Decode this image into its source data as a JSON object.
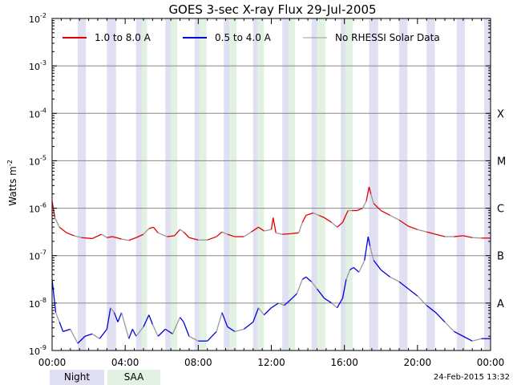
{
  "chart_data": {
    "type": "line",
    "title": "GOES 3-sec X-ray Flux",
    "date": "29-Jul-2005",
    "ylabel": "Watts m",
    "ylabel_sup": "-2",
    "yscale": "log",
    "ylim_exp": [
      -9,
      -2
    ],
    "y_ticks": [
      {
        "base": "10",
        "exp": "-9"
      },
      {
        "base": "10",
        "exp": "-8"
      },
      {
        "base": "10",
        "exp": "-7"
      },
      {
        "base": "10",
        "exp": "-6"
      },
      {
        "base": "10",
        "exp": "-5"
      },
      {
        "base": "10",
        "exp": "-4"
      },
      {
        "base": "10",
        "exp": "-3"
      },
      {
        "base": "10",
        "exp": "-2"
      }
    ],
    "flare_classes": [
      {
        "label": "A",
        "exp": -8
      },
      {
        "label": "B",
        "exp": -7
      },
      {
        "label": "C",
        "exp": -6
      },
      {
        "label": "M",
        "exp": -5
      },
      {
        "label": "X",
        "exp": -4
      }
    ],
    "x_ticks": [
      "00:00",
      "04:00",
      "08:00",
      "12:00",
      "16:00",
      "20:00",
      "00:00"
    ],
    "xlim_hours": [
      0,
      24
    ],
    "night_bands_hours": [
      [
        1.4,
        1.85
      ],
      [
        3.0,
        3.5
      ],
      [
        4.6,
        5.05
      ],
      [
        6.2,
        6.65
      ],
      [
        7.8,
        8.25
      ],
      [
        9.4,
        9.85
      ],
      [
        11.0,
        11.45
      ],
      [
        12.6,
        13.05
      ],
      [
        14.2,
        14.65
      ],
      [
        15.8,
        16.3
      ],
      [
        17.35,
        17.85
      ],
      [
        19.0,
        19.45
      ],
      [
        20.5,
        20.95
      ],
      [
        22.15,
        22.6
      ],
      [
        23.65,
        24.0
      ]
    ],
    "saa_bands_hours": [
      [
        4.9,
        5.2
      ],
      [
        6.5,
        6.85
      ],
      [
        8.05,
        8.45
      ],
      [
        9.7,
        10.1
      ],
      [
        11.25,
        11.6
      ],
      [
        12.95,
        13.3
      ],
      [
        14.5,
        14.95
      ],
      [
        16.05,
        16.45
      ]
    ],
    "legend": [
      {
        "label": "1.0 to 8.0 A",
        "color": "#e00000"
      },
      {
        "label": "0.5 to 4.0 A",
        "color": "#0000e0"
      },
      {
        "label": "No RHESSI Solar Data",
        "color": "#999999"
      }
    ],
    "series": [
      {
        "name": "1.0 to 8.0 A",
        "color": "#e00000",
        "points": [
          [
            0.0,
            -5.85
          ],
          [
            0.15,
            -6.2
          ],
          [
            0.4,
            -6.4
          ],
          [
            0.8,
            -6.52
          ],
          [
            1.2,
            -6.58
          ],
          [
            1.6,
            -6.62
          ],
          [
            2.2,
            -6.64
          ],
          [
            2.7,
            -6.55
          ],
          [
            3.0,
            -6.62
          ],
          [
            3.3,
            -6.6
          ],
          [
            3.8,
            -6.65
          ],
          [
            4.2,
            -6.68
          ],
          [
            4.6,
            -6.62
          ],
          [
            5.0,
            -6.55
          ],
          [
            5.3,
            -6.43
          ],
          [
            5.55,
            -6.4
          ],
          [
            5.8,
            -6.52
          ],
          [
            6.3,
            -6.6
          ],
          [
            6.7,
            -6.58
          ],
          [
            7.0,
            -6.45
          ],
          [
            7.2,
            -6.5
          ],
          [
            7.5,
            -6.62
          ],
          [
            8.0,
            -6.67
          ],
          [
            8.5,
            -6.67
          ],
          [
            9.0,
            -6.6
          ],
          [
            9.3,
            -6.5
          ],
          [
            9.6,
            -6.55
          ],
          [
            10.0,
            -6.6
          ],
          [
            10.5,
            -6.6
          ],
          [
            10.9,
            -6.5
          ],
          [
            11.3,
            -6.4
          ],
          [
            11.6,
            -6.48
          ],
          [
            12.0,
            -6.45
          ],
          [
            12.1,
            -6.2
          ],
          [
            12.25,
            -6.52
          ],
          [
            12.6,
            -6.55
          ],
          [
            13.0,
            -6.54
          ],
          [
            13.5,
            -6.52
          ],
          [
            13.7,
            -6.3
          ],
          [
            13.9,
            -6.15
          ],
          [
            14.3,
            -6.1
          ],
          [
            14.6,
            -6.15
          ],
          [
            14.9,
            -6.2
          ],
          [
            15.3,
            -6.3
          ],
          [
            15.6,
            -6.4
          ],
          [
            15.9,
            -6.3
          ],
          [
            16.2,
            -6.05
          ],
          [
            16.4,
            -6.05
          ],
          [
            16.7,
            -6.05
          ],
          [
            17.0,
            -6.0
          ],
          [
            17.2,
            -5.85
          ],
          [
            17.35,
            -5.55
          ],
          [
            17.45,
            -5.7
          ],
          [
            17.6,
            -5.9
          ],
          [
            18.0,
            -6.05
          ],
          [
            18.5,
            -6.15
          ],
          [
            19.0,
            -6.25
          ],
          [
            19.5,
            -6.38
          ],
          [
            20.0,
            -6.45
          ],
          [
            20.5,
            -6.5
          ],
          [
            21.0,
            -6.55
          ],
          [
            21.5,
            -6.6
          ],
          [
            22.0,
            -6.6
          ],
          [
            22.5,
            -6.58
          ],
          [
            23.0,
            -6.62
          ],
          [
            23.5,
            -6.63
          ],
          [
            24.0,
            -6.63
          ]
        ]
      },
      {
        "name": "0.5 to 4.0 A",
        "color": "#0000e0",
        "points": [
          [
            0.0,
            -7.5
          ],
          [
            0.2,
            -8.2
          ],
          [
            0.4,
            -8.4
          ],
          [
            0.6,
            -8.6
          ],
          [
            1.0,
            -8.55
          ],
          [
            1.4,
            -8.85
          ],
          [
            1.8,
            -8.7
          ],
          [
            2.2,
            -8.65
          ],
          [
            2.6,
            -8.75
          ],
          [
            3.0,
            -8.55
          ],
          [
            3.2,
            -8.1
          ],
          [
            3.4,
            -8.2
          ],
          [
            3.6,
            -8.4
          ],
          [
            3.8,
            -8.2
          ],
          [
            4.2,
            -8.75
          ],
          [
            4.4,
            -8.55
          ],
          [
            4.6,
            -8.7
          ],
          [
            5.0,
            -8.5
          ],
          [
            5.3,
            -8.25
          ],
          [
            5.5,
            -8.45
          ],
          [
            5.8,
            -8.7
          ],
          [
            6.2,
            -8.55
          ],
          [
            6.6,
            -8.65
          ],
          [
            7.0,
            -8.3
          ],
          [
            7.2,
            -8.4
          ],
          [
            7.5,
            -8.7
          ],
          [
            8.0,
            -8.8
          ],
          [
            8.5,
            -8.8
          ],
          [
            9.0,
            -8.6
          ],
          [
            9.3,
            -8.2
          ],
          [
            9.6,
            -8.5
          ],
          [
            10.0,
            -8.6
          ],
          [
            10.5,
            -8.55
          ],
          [
            11.0,
            -8.4
          ],
          [
            11.3,
            -8.1
          ],
          [
            11.6,
            -8.25
          ],
          [
            12.0,
            -8.1
          ],
          [
            12.4,
            -8.0
          ],
          [
            12.7,
            -8.05
          ],
          [
            13.0,
            -7.95
          ],
          [
            13.4,
            -7.8
          ],
          [
            13.7,
            -7.5
          ],
          [
            13.9,
            -7.45
          ],
          [
            14.2,
            -7.55
          ],
          [
            14.5,
            -7.7
          ],
          [
            14.9,
            -7.9
          ],
          [
            15.3,
            -8.0
          ],
          [
            15.6,
            -8.1
          ],
          [
            15.9,
            -7.9
          ],
          [
            16.1,
            -7.5
          ],
          [
            16.3,
            -7.3
          ],
          [
            16.5,
            -7.25
          ],
          [
            16.8,
            -7.35
          ],
          [
            17.1,
            -7.1
          ],
          [
            17.3,
            -6.6
          ],
          [
            17.4,
            -6.8
          ],
          [
            17.6,
            -7.1
          ],
          [
            18.0,
            -7.3
          ],
          [
            18.5,
            -7.45
          ],
          [
            19.0,
            -7.55
          ],
          [
            19.5,
            -7.7
          ],
          [
            20.0,
            -7.85
          ],
          [
            20.5,
            -8.05
          ],
          [
            21.0,
            -8.2
          ],
          [
            21.5,
            -8.4
          ],
          [
            22.0,
            -8.6
          ],
          [
            22.5,
            -8.7
          ],
          [
            23.0,
            -8.8
          ],
          [
            23.5,
            -8.75
          ],
          [
            24.0,
            -8.75
          ]
        ]
      }
    ]
  },
  "legend_footer": [
    {
      "label": "Night",
      "color": "#e0e0f2"
    },
    {
      "label": "SAA",
      "color": "#e2f2e2"
    }
  ],
  "footer_date": "24-Feb-2015 13:32"
}
